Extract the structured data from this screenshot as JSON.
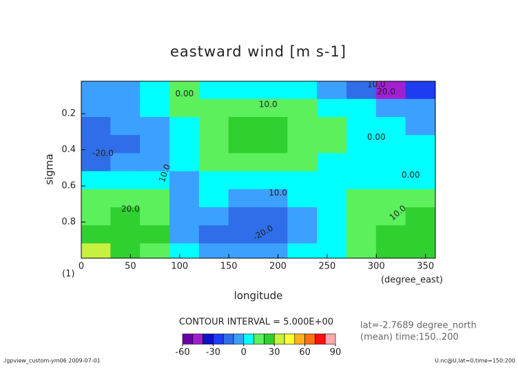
{
  "chart_data": {
    "type": "contour",
    "title": "eastward wind [m s-1]",
    "ylabel": "sigma",
    "xlabel": "longitude",
    "x_unit": "(degree_east)",
    "panel_number": "(1)",
    "contour_interval": "CONTOUR INTERVAL = 5.000E+00",
    "info_lines": [
      "lat=-2.7689 degree_north",
      "(mean) time:150..200"
    ],
    "footer_left": "./gpview_custom-ym06  2009-07-01",
    "footer_right": "U.nc@U,lat=0,time=150:200",
    "xlim": [
      0,
      360
    ],
    "xticks": [
      0,
      50,
      100,
      150,
      200,
      250,
      300,
      350
    ],
    "ylim": [
      1,
      0.02
    ],
    "yticks": [
      0.2,
      0.4,
      0.6,
      0.8
    ],
    "x": [
      15,
      45,
      75,
      105,
      135,
      165,
      195,
      225,
      255,
      285,
      315,
      345
    ],
    "y": [
      0.07,
      0.17,
      0.27,
      0.37,
      0.47,
      0.57,
      0.67,
      0.77,
      0.87,
      0.97
    ],
    "z": [
      [
        -5,
        -5,
        5,
        10,
        0,
        5,
        5,
        0,
        -10,
        -20,
        -45,
        -30
      ],
      [
        -10,
        -5,
        0,
        12,
        15,
        18,
        18,
        15,
        8,
        0,
        -5,
        -8
      ],
      [
        -15,
        -10,
        -3,
        5,
        15,
        25,
        26,
        18,
        10,
        5,
        0,
        -3
      ],
      [
        -20,
        -15,
        -5,
        3,
        15,
        22,
        22,
        16,
        10,
        3,
        2,
        3
      ],
      [
        -12,
        -10,
        -5,
        3,
        10,
        12,
        12,
        10,
        5,
        3,
        3,
        3
      ],
      [
        5,
        5,
        0,
        -3,
        3,
        5,
        5,
        5,
        3,
        3,
        5,
        8
      ],
      [
        12,
        15,
        10,
        -3,
        0,
        -3,
        -3,
        0,
        5,
        10,
        12,
        15
      ],
      [
        18,
        20,
        18,
        -3,
        -10,
        -15,
        -12,
        -3,
        5,
        12,
        18,
        22
      ],
      [
        28,
        25,
        20,
        -2,
        -12,
        -18,
        -12,
        -5,
        5,
        15,
        22,
        28
      ],
      [
        32,
        25,
        18,
        0,
        -5,
        -10,
        -5,
        0,
        5,
        15,
        22,
        28
      ]
    ],
    "levels": [
      -60,
      -50,
      -40,
      -30,
      -20,
      -10,
      0,
      10,
      20,
      30,
      40,
      50,
      60,
      70,
      80,
      90
    ],
    "colors": [
      "#6a00a8",
      "#a020d0",
      "#1010c8",
      "#1e3cf0",
      "#2f6ee8",
      "#3ca0ff",
      "#00ffff",
      "#5cf05c",
      "#30d030",
      "#c8f040",
      "#ffff30",
      "#ffb020",
      "#ff7010",
      "#ff1010",
      "#ffaaaa"
    ],
    "colorbar_ticks": [
      -60,
      -30,
      0,
      30,
      60,
      90
    ],
    "contour_labels": [
      "0.00",
      "10.0",
      "20.0",
      "10.0",
      "0.00",
      "-20.0",
      "10.0",
      "0.00",
      "10.0",
      "20.0",
      "10.0",
      "-20.0"
    ]
  }
}
